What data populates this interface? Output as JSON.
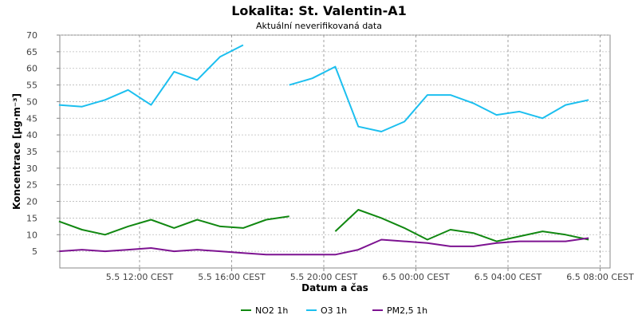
{
  "chart_data": {
    "type": "line",
    "title": "Lokalita: St. Valentin-A1",
    "subtitle": "Aktuální neverifikovaná data",
    "xlabel": "Datum a čas",
    "ylabel": "Koncentrace [µg·m⁻³]",
    "ylim": [
      0,
      70
    ],
    "y_ticks": [
      5,
      10,
      15,
      20,
      25,
      30,
      35,
      40,
      45,
      50,
      55,
      60,
      65,
      70
    ],
    "x_ticks": [
      {
        "hour": 12,
        "label": "5.5 12:00 CEST"
      },
      {
        "hour": 16,
        "label": "5.5 16:00 CEST"
      },
      {
        "hour": 20,
        "label": "5.5 20:00 CEST"
      },
      {
        "hour": 24,
        "label": "6.5 00:00 CEST"
      },
      {
        "hour": 28,
        "label": "6.5 04:00 CEST"
      },
      {
        "hour": 32,
        "label": "6.5 08:00 CEST"
      }
    ],
    "x_hours": [
      8.5,
      9.5,
      10.5,
      11.5,
      12.5,
      13.5,
      14.5,
      15.5,
      16.5,
      17.5,
      18.5,
      19.5,
      20.5,
      21.5,
      22.5,
      23.5,
      24.5,
      25.5,
      26.5,
      27.5,
      28.5,
      29.5,
      30.5,
      31.5,
      32.5
    ],
    "grid": true,
    "legend_position": "bottom-center",
    "series": [
      {
        "name": "NO2 1h",
        "color": "#118811",
        "values": [
          14,
          11.5,
          10,
          12.5,
          14.5,
          12,
          14.5,
          12.5,
          12,
          14.5,
          15.5,
          null,
          11,
          17.5,
          15,
          12,
          8.5,
          11.5,
          10.5,
          8,
          9.5,
          11,
          10,
          8.5,
          null
        ]
      },
      {
        "name": "O3 1h",
        "color": "#1cbfef",
        "values": [
          49,
          48.5,
          50.5,
          53.5,
          49,
          59,
          56.5,
          63.5,
          67,
          null,
          55,
          57,
          60.5,
          42.5,
          41,
          44,
          52,
          52,
          49.5,
          46,
          47,
          45,
          49,
          50.5,
          null
        ]
      },
      {
        "name": "PM2,5 1h",
        "color": "#7d1391",
        "values": [
          5,
          5.5,
          5,
          5.5,
          6,
          5,
          5.5,
          5,
          4.5,
          4,
          4,
          4,
          4,
          5.5,
          8.5,
          8,
          7.5,
          6.5,
          6.5,
          7.5,
          8,
          8,
          8,
          9,
          null
        ]
      }
    ]
  }
}
